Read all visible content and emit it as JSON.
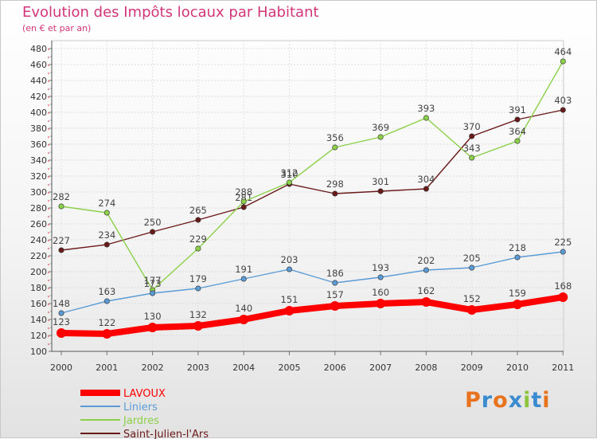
{
  "title": "Evolution des Impôts locaux par Habitant",
  "subtitle": "(en € et par an)",
  "logo_text": "Proxiti",
  "logo_colors": [
    "#e8731e",
    "#3b8bd0",
    "#e8731e",
    "#3b8bd0",
    "#8cc43e",
    "#3b8bd0",
    "#e8731e"
  ],
  "chart_data": {
    "type": "line",
    "x": [
      "2000",
      "2001",
      "2002",
      "2003",
      "2004",
      "2005",
      "2006",
      "2007",
      "2008",
      "2009",
      "2010",
      "2011"
    ],
    "ylim": [
      100,
      480
    ],
    "yticks": [
      100,
      120,
      140,
      160,
      180,
      200,
      220,
      240,
      260,
      280,
      300,
      320,
      340,
      360,
      380,
      400,
      420,
      440,
      460,
      480
    ],
    "grid": true,
    "legend_position": "bottom-left",
    "series": [
      {
        "name": "LAVOUX",
        "color": "#ff0000",
        "values": [
          123,
          122,
          130,
          132,
          140,
          151,
          157,
          160,
          162,
          152,
          159,
          168
        ]
      },
      {
        "name": "Liniers",
        "color": "#5b9bd5",
        "values": [
          148,
          163,
          173,
          179,
          191,
          203,
          186,
          193,
          202,
          205,
          218,
          225
        ]
      },
      {
        "name": "Jardres",
        "color": "#8cd04a",
        "values": [
          282,
          274,
          177,
          229,
          288,
          312,
          356,
          369,
          393,
          343,
          364,
          464
        ]
      },
      {
        "name": "Saint-Julien-l'Ars",
        "color": "#6b1a1a",
        "values": [
          227,
          234,
          250,
          265,
          281,
          310,
          298,
          301,
          304,
          370,
          391,
          403
        ]
      }
    ]
  }
}
